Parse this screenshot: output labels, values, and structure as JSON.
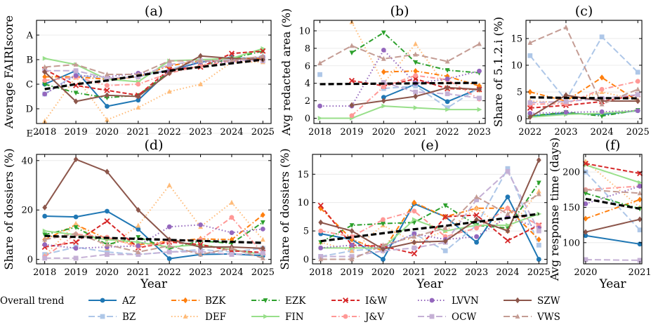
{
  "legend": [
    {
      "key": "AZ",
      "label": "AZ",
      "color": "#1f77b4",
      "dash": "solid",
      "marker": "circle"
    },
    {
      "key": "BZ",
      "label": "BZ",
      "color": "#aec7e8",
      "dash": "longdash",
      "marker": "square"
    },
    {
      "key": "BZK",
      "label": "BZK",
      "color": "#ff7f0e",
      "dash": "dashdot",
      "marker": "diamond"
    },
    {
      "key": "DEF",
      "label": "DEF",
      "color": "#ffbb78",
      "dash": "dotted",
      "marker": "triangle-up"
    },
    {
      "key": "EZK",
      "label": "EZK",
      "color": "#2ca02c",
      "dash": "dashdot",
      "marker": "triangle-down"
    },
    {
      "key": "FIN",
      "label": "FIN",
      "color": "#98df8a",
      "dash": "solid",
      "marker": "triangle-right"
    },
    {
      "key": "IW",
      "label": "I&W",
      "color": "#d62728",
      "dash": "dashed",
      "marker": "x"
    },
    {
      "key": "JV",
      "label": "J&V",
      "color": "#ff9896",
      "dash": "dashdot",
      "marker": "circle"
    },
    {
      "key": "LVVN",
      "label": "LVVN",
      "color": "#9467bd",
      "dash": "dotted",
      "marker": "circle"
    },
    {
      "key": "OCW",
      "label": "OCW",
      "color": "#c5b0d5",
      "dash": "longdash",
      "marker": "square"
    },
    {
      "key": "SZW",
      "label": "SZW",
      "color": "#8c564b",
      "dash": "solid",
      "marker": "diamond"
    },
    {
      "key": "VWS",
      "label": "VWS",
      "color": "#c49c94",
      "dash": "longdash",
      "marker": "triangle-up"
    },
    {
      "key": "trend",
      "label": "Overall trend",
      "color": "#000000",
      "dash": "bold",
      "marker": "none"
    }
  ],
  "x_label": "Year",
  "chart_data": [
    {
      "id": "a",
      "title": "(a)",
      "type": "line",
      "ylabel": "Average FAIRIscore",
      "xlabel": "",
      "x": [
        2018,
        2019,
        2020,
        2021,
        2022,
        2023,
        2024,
        2025
      ],
      "ylim": [
        0.4,
        4.6
      ],
      "yticks": [
        0,
        1,
        2,
        3,
        4
      ],
      "yticklabels": [
        "E",
        "D",
        "C",
        "B",
        "A"
      ],
      "grid": true,
      "series": [
        {
          "key": "AZ",
          "values": [
            2.0,
            2.55,
            1.1,
            1.35,
            2.55,
            2.9,
            3.1,
            3.0
          ]
        },
        {
          "key": "BZ",
          "values": [
            1.6,
            2.4,
            2.2,
            2.3,
            2.6,
            2.95,
            3.05,
            3.1
          ]
        },
        {
          "key": "BZK",
          "values": [
            2.3,
            2.3,
            2.2,
            2.3,
            2.75,
            2.95,
            3.05,
            3.05
          ]
        },
        {
          "key": "DEF",
          "values": [
            0.5,
            2.3,
            0.55,
            1.05,
            1.7,
            2.0,
            2.9,
            2.9
          ]
        },
        {
          "key": "EZK",
          "values": [
            2.0,
            1.65,
            1.45,
            1.55,
            2.5,
            2.75,
            3.05,
            3.35
          ]
        },
        {
          "key": "FIN",
          "values": [
            3.05,
            2.8,
            2.2,
            2.1,
            2.95,
            3.0,
            3.05,
            3.45
          ]
        },
        {
          "key": "IW",
          "values": [
            2.6,
            1.95,
            1.75,
            1.55,
            2.6,
            2.7,
            3.25,
            3.35
          ]
        },
        {
          "key": "JV",
          "values": [
            2.15,
            2.3,
            1.95,
            2.0,
            2.45,
            2.75,
            2.95,
            2.95
          ]
        },
        {
          "key": "LVVN",
          "values": [
            1.6,
            2.35,
            2.3,
            2.45,
            2.5,
            2.9,
            2.9,
            3.1
          ]
        },
        {
          "key": "OCW",
          "values": [
            2.55,
            2.55,
            2.25,
            2.3,
            2.8,
            2.95,
            3.0,
            2.95
          ]
        },
        {
          "key": "SZW",
          "values": [
            2.5,
            1.3,
            1.55,
            1.5,
            2.45,
            3.15,
            3.05,
            3.0
          ]
        },
        {
          "key": "VWS",
          "values": [
            2.7,
            2.8,
            2.4,
            2.4,
            2.95,
            2.95,
            2.95,
            3.15
          ]
        },
        {
          "key": "trend",
          "values": [
            1.8,
            2.0,
            2.15,
            2.35,
            2.55,
            2.7,
            2.85,
            3.0
          ]
        }
      ]
    },
    {
      "id": "b",
      "title": "(b)",
      "type": "line",
      "ylabel": "Avg redacted area (%)",
      "xlabel": "",
      "x": [
        2018,
        2019,
        2020,
        2021,
        2022,
        2023
      ],
      "ylim": [
        -0.6,
        11.2
      ],
      "yticks": [
        0,
        2,
        4,
        6,
        8,
        10
      ],
      "yticklabels": [
        "0",
        "2",
        "4",
        "6",
        "8",
        "10"
      ],
      "grid": true,
      "series": [
        {
          "key": "AZ",
          "values": [
            null,
            null,
            2.4,
            3.9,
            1.9,
            3.4
          ]
        },
        {
          "key": "BZ",
          "values": [
            5.0,
            null,
            3.4,
            3.7,
            1.2,
            3.5
          ]
        },
        {
          "key": "BZK",
          "values": [
            null,
            null,
            5.3,
            5.4,
            4.8,
            3.7
          ]
        },
        {
          "key": "DEF",
          "values": [
            null,
            11.0,
            4.0,
            8.5,
            3.4,
            3.2
          ]
        },
        {
          "key": "EZK",
          "values": [
            null,
            7.5,
            9.8,
            6.4,
            5.5,
            5.2
          ]
        },
        {
          "key": "FIN",
          "values": [
            0.0,
            0.0,
            1.4,
            1.2,
            1.0,
            1.0
          ]
        },
        {
          "key": "IW",
          "values": [
            null,
            4.3,
            3.7,
            4.5,
            3.4,
            3.3
          ]
        },
        {
          "key": "JV",
          "values": [
            null,
            0.3,
            3.6,
            4.9,
            4.4,
            2.2
          ]
        },
        {
          "key": "LVVN",
          "values": [
            1.4,
            1.4,
            7.8,
            4.0,
            4.5,
            5.4
          ]
        },
        {
          "key": "OCW",
          "values": [
            null,
            null,
            4.1,
            3.0,
            2.8,
            2.3
          ]
        },
        {
          "key": "SZW",
          "values": [
            null,
            1.5,
            2.0,
            2.5,
            3.5,
            3.3
          ]
        },
        {
          "key": "VWS",
          "values": [
            6.3,
            8.3,
            6.8,
            7.3,
            6.5,
            8.5
          ]
        },
        {
          "key": "trend",
          "values": [
            3.9,
            3.93,
            3.96,
            3.99,
            4.02,
            4.05
          ]
        }
      ]
    },
    {
      "id": "c",
      "title": "(c)",
      "type": "line",
      "ylabel": "Share of 5.1.2.i (%)",
      "xlabel": "",
      "x": [
        2022,
        2023,
        2024,
        2025
      ],
      "ylim": [
        -0.9,
        18.4
      ],
      "yticks": [
        0,
        5,
        10,
        15
      ],
      "yticklabels": [
        "0",
        "5",
        "10",
        "15"
      ],
      "grid": true,
      "series": [
        {
          "key": "AZ",
          "values": [
            0.5,
            1.0,
            0.8,
            1.5
          ]
        },
        {
          "key": "BZ",
          "values": [
            11.8,
            3.5,
            15.3,
            8.7
          ]
        },
        {
          "key": "BZK",
          "values": [
            5.0,
            3.3,
            7.7,
            3.3
          ]
        },
        {
          "key": "DEF",
          "values": [
            3.3,
            3.0,
            5.0,
            3.5
          ]
        },
        {
          "key": "EZK",
          "values": [
            0.5,
            1.2,
            0.5,
            1.6
          ]
        },
        {
          "key": "FIN",
          "values": [
            0.3,
            0.8,
            1.0,
            1.5
          ]
        },
        {
          "key": "IW",
          "values": [
            2.0,
            2.5,
            3.2,
            4.5
          ]
        },
        {
          "key": "JV",
          "values": [
            2.7,
            2.8,
            5.5,
            7.0
          ]
        },
        {
          "key": "LVVN",
          "values": [
            1.0,
            1.2,
            1.3,
            1.5
          ]
        },
        {
          "key": "OCW",
          "values": [
            3.0,
            3.2,
            3.8,
            4.5
          ]
        },
        {
          "key": "SZW",
          "values": [
            0.3,
            4.4,
            3.3,
            3.3
          ]
        },
        {
          "key": "VWS",
          "values": [
            14.2,
            17.1,
            2.7,
            5.5
          ]
        },
        {
          "key": "trend",
          "values": [
            4.0,
            3.9,
            3.85,
            3.8
          ]
        }
      ]
    },
    {
      "id": "d",
      "title": "(d)",
      "type": "line",
      "ylabel": "Share of dossiers (%)",
      "xlabel": "Year",
      "x": [
        2018,
        2019,
        2020,
        2021,
        2022,
        2023,
        2024,
        2025
      ],
      "ylim": [
        -1.8,
        42.5
      ],
      "yticks": [
        0,
        20,
        40
      ],
      "yticklabels": [
        "0",
        "20",
        "40"
      ],
      "grid": true,
      "series": [
        {
          "key": "AZ",
          "values": [
            17.5,
            17.2,
            19.5,
            12.2,
            0.3,
            2.0,
            2.2,
            1.5
          ]
        },
        {
          "key": "BZ",
          "values": [
            2.0,
            5.0,
            3.0,
            2.0,
            3.0,
            4.0,
            3.0,
            4.5
          ]
        },
        {
          "key": "BZK",
          "values": [
            8.0,
            14.0,
            8.3,
            6.0,
            7.3,
            8.3,
            8.0,
            18.0
          ]
        },
        {
          "key": "DEF",
          "values": [
            1.5,
            14.5,
            4.5,
            13.7,
            30.0,
            13.2,
            23.0,
            8.0
          ]
        },
        {
          "key": "EZK",
          "values": [
            10.0,
            13.0,
            6.0,
            9.0,
            4.3,
            7.5,
            6.5,
            15.0
          ]
        },
        {
          "key": "FIN",
          "values": [
            11.5,
            10.0,
            8.0,
            7.0,
            5.0,
            6.0,
            4.0,
            2.0
          ]
        },
        {
          "key": "IW",
          "values": [
            5.0,
            7.0,
            15.5,
            4.7,
            7.0,
            6.0,
            3.5,
            2.8
          ]
        },
        {
          "key": "JV",
          "values": [
            1.0,
            10.2,
            9.0,
            5.0,
            7.3,
            8.0,
            17.0,
            2.5
          ]
        },
        {
          "key": "LVVN",
          "values": [
            6.0,
            4.5,
            5.0,
            5.5,
            13.2,
            14.0,
            10.8,
            12.3
          ]
        },
        {
          "key": "OCW",
          "values": [
            0.5,
            0.5,
            2.0,
            2.0,
            3.0,
            3.2,
            2.0,
            2.5
          ]
        },
        {
          "key": "SZW",
          "values": [
            21.0,
            40.5,
            35.5,
            20.0,
            8.0,
            5.0,
            5.0,
            4.5
          ]
        },
        {
          "key": "VWS",
          "values": [
            8.0,
            10.5,
            6.0,
            3.0,
            5.5,
            2.0,
            4.5,
            0.5
          ]
        },
        {
          "key": "trend",
          "values": [
            9.5,
            9.1,
            8.7,
            8.3,
            7.9,
            7.5,
            7.1,
            6.7
          ]
        }
      ]
    },
    {
      "id": "e",
      "title": "(e)",
      "type": "line",
      "ylabel": "Share of dossiers (%)",
      "xlabel": "Year",
      "x": [
        2018,
        2019,
        2020,
        2021,
        2022,
        2023,
        2024,
        2025
      ],
      "ylim": [
        -0.8,
        18.5
      ],
      "yticks": [
        0,
        5,
        10,
        15
      ],
      "yticklabels": [
        "0",
        "5",
        "10",
        "15"
      ],
      "grid": true,
      "series": [
        {
          "key": "AZ",
          "values": [
            4.5,
            3.5,
            0.0,
            9.8,
            7.5,
            3.0,
            11.0,
            0.0
          ]
        },
        {
          "key": "BZ",
          "values": [
            0.5,
            1.5,
            2.0,
            4.5,
            1.5,
            6.0,
            16.0,
            2.5
          ]
        },
        {
          "key": "BZK",
          "values": [
            9.0,
            3.5,
            1.5,
            10.0,
            7.5,
            9.0,
            9.0,
            3.5
          ]
        },
        {
          "key": "DEF",
          "values": [
            3.0,
            1.5,
            6.0,
            3.0,
            5.0,
            9.0,
            5.0,
            12.0
          ]
        },
        {
          "key": "EZK",
          "values": [
            3.0,
            6.0,
            6.3,
            6.5,
            9.5,
            6.0,
            5.5,
            13.5
          ]
        },
        {
          "key": "FIN",
          "values": [
            2.0,
            2.0,
            2.0,
            7.0,
            5.0,
            6.0,
            6.0,
            8.0
          ]
        },
        {
          "key": "IW",
          "values": [
            9.5,
            2.5,
            2.3,
            1.0,
            7.5,
            7.8,
            3.3,
            6.0
          ]
        },
        {
          "key": "JV",
          "values": [
            5.0,
            4.0,
            7.0,
            8.5,
            4.0,
            5.5,
            9.0,
            6.0
          ]
        },
        {
          "key": "LVVN",
          "values": [
            2.0,
            2.5,
            2.0,
            4.5,
            3.5,
            4.0,
            7.5,
            5.5
          ]
        },
        {
          "key": "OCW",
          "values": [
            0.5,
            0.5,
            1.5,
            2.0,
            3.0,
            10.5,
            15.5,
            5.0
          ]
        },
        {
          "key": "SZW",
          "values": [
            6.5,
            5.0,
            1.8,
            3.0,
            3.2,
            7.0,
            5.0,
            17.5
          ]
        },
        {
          "key": "VWS",
          "values": [
            0.0,
            0.0,
            2.5,
            4.0,
            5.5,
            11.0,
            8.0,
            11.5
          ]
        },
        {
          "key": "trend",
          "values": [
            3.2,
            3.9,
            4.6,
            5.3,
            5.9,
            6.6,
            7.3,
            8.0
          ]
        }
      ]
    },
    {
      "id": "f",
      "title": "(f)",
      "type": "line",
      "ylabel": "Avg response time (days)",
      "xlabel": "Year",
      "x": [
        2020,
        2021
      ],
      "ylim": [
        70,
        225
      ],
      "yticks": [
        100,
        150,
        200
      ],
      "yticklabels": [
        "100",
        "150",
        "200"
      ],
      "grid": true,
      "series": [
        {
          "key": "AZ",
          "values": [
            110,
            98
          ]
        },
        {
          "key": "BZ",
          "values": [
            200,
            118
          ]
        },
        {
          "key": "BZK",
          "values": [
            134,
            161
          ]
        },
        {
          "key": "DEF",
          "values": [
            215,
            150
          ]
        },
        {
          "key": "EZK",
          "values": [
            170,
            148
          ]
        },
        {
          "key": "FIN",
          "values": [
            210,
            185
          ]
        },
        {
          "key": "IW",
          "values": [
            212,
            198
          ]
        },
        {
          "key": "JV",
          "values": [
            175,
            180
          ]
        },
        {
          "key": "LVVN",
          "values": [
            155,
            180
          ]
        },
        {
          "key": "OCW",
          "values": [
            76,
            75
          ]
        },
        {
          "key": "SZW",
          "values": [
            115,
            133
          ]
        },
        {
          "key": "VWS",
          "values": [
            175,
            170
          ]
        },
        {
          "key": "trend",
          "values": [
            162,
            148
          ]
        }
      ]
    }
  ]
}
